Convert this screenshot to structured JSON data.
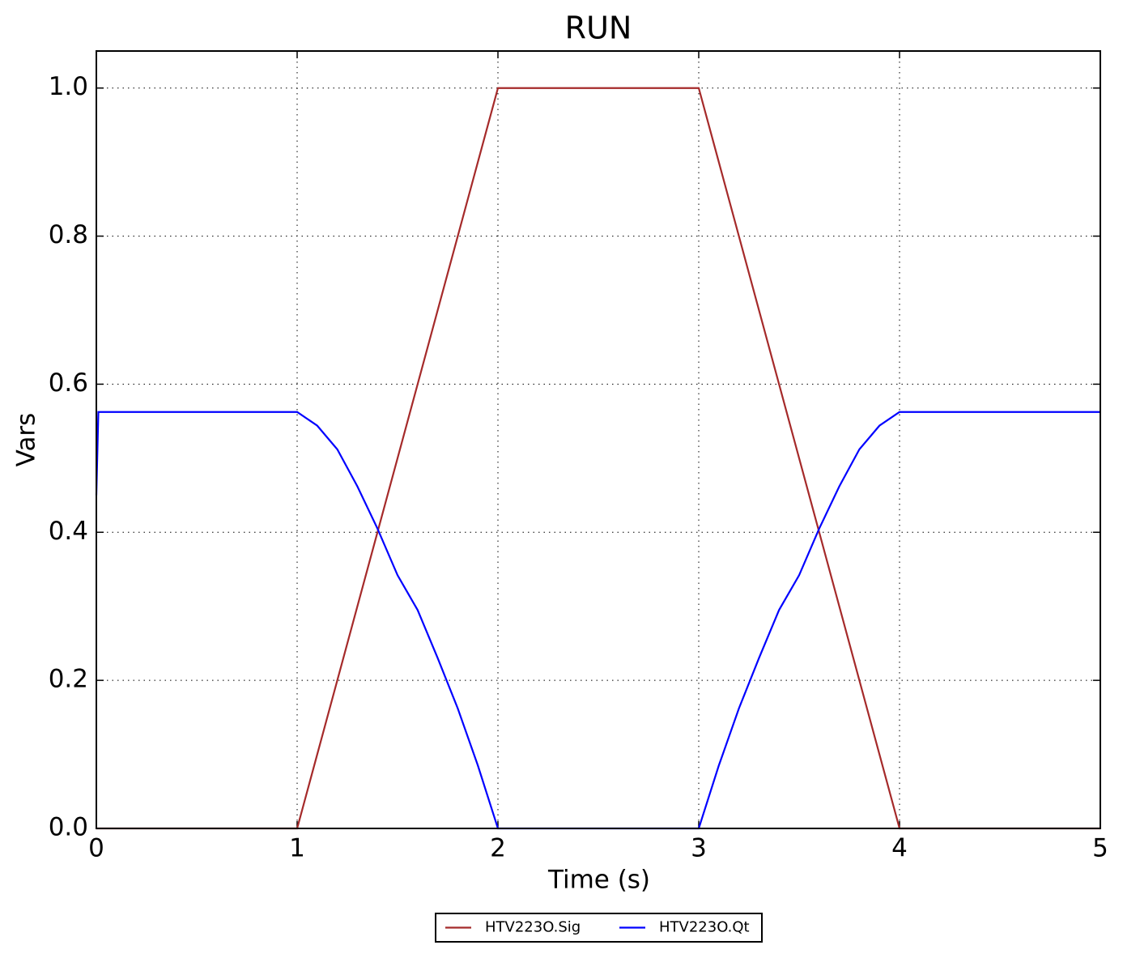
{
  "chart_data": {
    "type": "line",
    "title": "RUN",
    "x_label": "Time (s)",
    "y_label": "Vars",
    "series": [
      {
        "name": "HTV223O.Sig",
        "color": "#a52a2a",
        "x": [
          0,
          1,
          2,
          3,
          4,
          5
        ],
        "values": [
          0,
          0,
          1,
          1,
          0,
          0
        ]
      },
      {
        "name": "HTV223O.Qt",
        "color": "#0000ff",
        "x": [
          0,
          0.01,
          1,
          1.1,
          1.2,
          1.3,
          1.4,
          1.5,
          1.6,
          1.7,
          1.8,
          1.9,
          2,
          3,
          3.1,
          3.2,
          3.3,
          3.4,
          3.5,
          3.6,
          3.7,
          3.8,
          3.9,
          4,
          5
        ],
        "values": [
          0.45,
          0.5625,
          0.5625,
          0.544,
          0.512,
          0.462,
          0.405,
          0.342,
          0.295,
          0.23,
          0.162,
          0.085,
          0,
          0,
          0.085,
          0.162,
          0.23,
          0.295,
          0.342,
          0.405,
          0.462,
          0.512,
          0.544,
          0.5625,
          0.5625
        ]
      }
    ],
    "xlim": [
      0,
      5
    ],
    "xticks": [
      0,
      1,
      2,
      3,
      4,
      5
    ],
    "ylim": [
      0,
      1.05
    ],
    "yticks": [
      {
        "value": 0,
        "label": "0.0"
      },
      {
        "value": 0.2,
        "label": "0.2"
      },
      {
        "value": 0.4,
        "label": "0.4"
      },
      {
        "value": 0.6,
        "label": "0.6"
      },
      {
        "value": 0.8,
        "label": "0.8"
      },
      {
        "value": 1,
        "label": "1.0"
      }
    ],
    "grid": true,
    "legend": "bottom"
  }
}
